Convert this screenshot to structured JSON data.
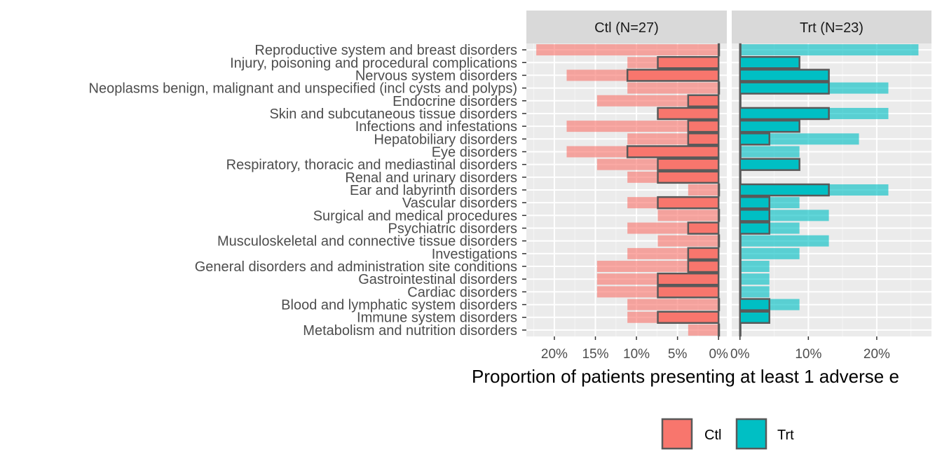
{
  "chart_data": {
    "type": "bar",
    "xlabel": "Proportion of patients presenting at least 1 adverse e",
    "ylabel": "",
    "categories": [
      "Reproductive system and breast disorders",
      "Injury, poisoning and procedural complications",
      "Nervous system disorders",
      "Neoplasms benign, malignant and unspecified (incl cysts and polyps)",
      "Endocrine disorders",
      "Skin and subcutaneous tissue disorders",
      "Infections and infestations",
      "Hepatobiliary disorders",
      "Eye disorders",
      "Respiratory, thoracic and mediastinal disorders",
      "Renal and urinary disorders",
      "Ear and labyrinth disorders",
      "Vascular disorders",
      "Surgical and medical procedures",
      "Psychiatric disorders",
      "Musculoskeletal and connective tissue disorders",
      "Investigations",
      "General disorders and administration site conditions",
      "Gastrointestinal disorders",
      "Cardiac disorders",
      "Blood and lymphatic system disorders",
      "Immune system disorders",
      "Metabolism and nutrition disorders"
    ],
    "panels": [
      {
        "name": "Ctl",
        "title": "Ctl (N=27)",
        "direction": "reversed",
        "xlim": [
          0,
          22.4
        ],
        "ticks": [
          20,
          15,
          10,
          5,
          0
        ],
        "tick_labels": [
          "20%",
          "15%",
          "10%",
          "5%",
          "0%"
        ],
        "color": "#F8766D",
        "light": [
          22.2,
          11.1,
          18.5,
          11.1,
          14.8,
          7.4,
          18.5,
          11.1,
          18.5,
          14.8,
          11.1,
          3.7,
          11.1,
          7.4,
          11.1,
          7.4,
          11.1,
          14.8,
          14.8,
          14.8,
          11.1,
          11.1,
          3.7
        ],
        "dark": [
          0,
          7.4,
          11.1,
          0,
          3.7,
          7.4,
          3.7,
          3.7,
          11.1,
          7.4,
          7.4,
          0,
          7.4,
          0,
          3.7,
          0,
          3.7,
          3.7,
          7.4,
          7.4,
          0,
          7.4,
          0
        ]
      },
      {
        "name": "Trt",
        "title": "Trt (N=23)",
        "direction": "normal",
        "xlim": [
          0,
          26.8
        ],
        "ticks": [
          0,
          10,
          20
        ],
        "tick_labels": [
          "0%",
          "10%",
          "20%"
        ],
        "color": "#00BFC4",
        "light": [
          26.1,
          8.7,
          13.0,
          21.7,
          0,
          21.7,
          8.7,
          17.4,
          8.7,
          8.7,
          0,
          21.7,
          8.7,
          13.0,
          8.7,
          13.0,
          8.7,
          4.3,
          4.3,
          4.3,
          8.7,
          4.3,
          0
        ],
        "dark": [
          0,
          8.7,
          13.0,
          13.0,
          0,
          13.0,
          8.7,
          4.3,
          0,
          8.7,
          0,
          13.0,
          4.3,
          4.3,
          4.3,
          0,
          0,
          0,
          0,
          0,
          4.3,
          4.3,
          0
        ]
      }
    ],
    "legend": {
      "placement": "bottom",
      "items": [
        {
          "label": "Ctl",
          "color": "#F8766D"
        },
        {
          "label": "Trt",
          "color": "#00BFC4"
        }
      ]
    },
    "grid": true,
    "panel_background": "#EBEBEB",
    "strip_background": "#D9D9D9"
  }
}
